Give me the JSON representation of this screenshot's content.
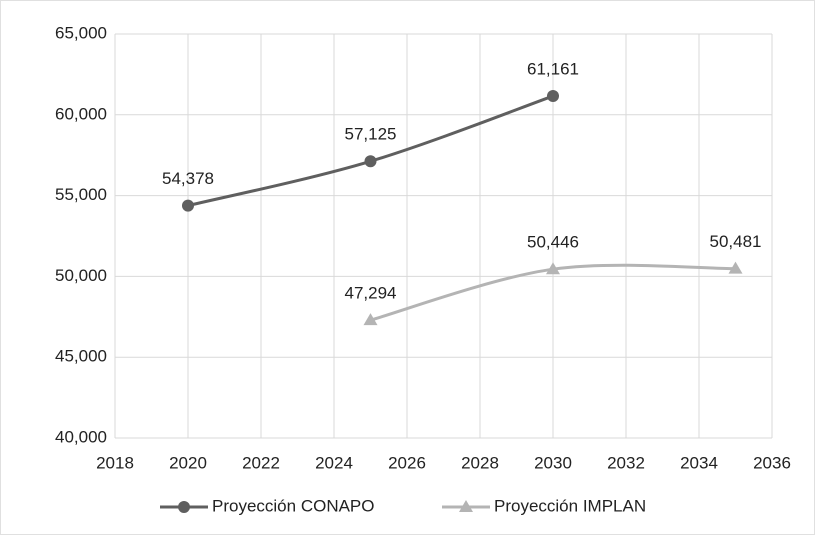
{
  "chart_data": {
    "type": "line",
    "series": [
      {
        "name": "Proyección CONAPO",
        "color": "#5f5f5f",
        "marker": "circle",
        "x": [
          2020,
          2025,
          2030
        ],
        "values": [
          54378,
          57125,
          61161
        ],
        "value_labels": [
          "54,378",
          "57,125",
          "61,161"
        ]
      },
      {
        "name": "Proyección IMPLAN",
        "color": "#b4b4b4",
        "marker": "triangle",
        "x": [
          2025,
          2030,
          2035
        ],
        "values": [
          47294,
          50446,
          50481
        ],
        "value_labels": [
          "47,294",
          "50,446",
          "50,481"
        ]
      }
    ],
    "xlim": [
      2018,
      2036
    ],
    "xticks": [
      2018,
      2020,
      2022,
      2024,
      2026,
      2028,
      2030,
      2032,
      2034,
      2036
    ],
    "ylim": [
      40000,
      65000
    ],
    "yticks": [
      {
        "value": 40000,
        "label": "40,000"
      },
      {
        "value": 45000,
        "label": "45,000"
      },
      {
        "value": 50000,
        "label": "50,000"
      },
      {
        "value": 55000,
        "label": "55,000"
      },
      {
        "value": 60000,
        "label": "60,000"
      },
      {
        "value": 65000,
        "label": "65,000"
      }
    ],
    "grid": true,
    "legend": "bottom"
  }
}
